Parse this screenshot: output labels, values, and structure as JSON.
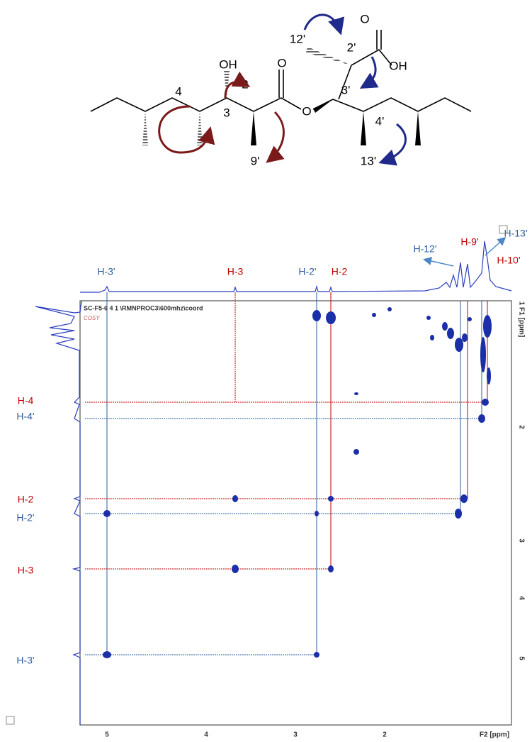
{
  "structure": {
    "labels": [
      "OH",
      "O",
      "4",
      "3",
      "2",
      "9'",
      "O",
      "12'",
      "2'",
      "O",
      "OH",
      "3'",
      "4'",
      "13'"
    ]
  },
  "spectrum": {
    "header": "SC-F5-6  4  1  \\RMNPROC3\\600mhz\\coord",
    "experiment": "COSY",
    "x_axis": {
      "label": "F2 [ppm]",
      "ticks": [
        "5",
        "4",
        "3",
        "2"
      ]
    },
    "y_axis": {
      "label": "1 F1 [ppm]",
      "ticks": [
        "2",
        "3",
        "4",
        "5"
      ]
    },
    "top_labels": [
      "H-3'",
      "H-3",
      "H-2'",
      "H-2",
      "H-12'",
      "H-9'",
      "H-13'",
      "H-10'"
    ],
    "left_labels": [
      "H-4",
      "H-4'",
      "H-2",
      "H-2'",
      "H-3",
      "H-3'"
    ]
  }
}
